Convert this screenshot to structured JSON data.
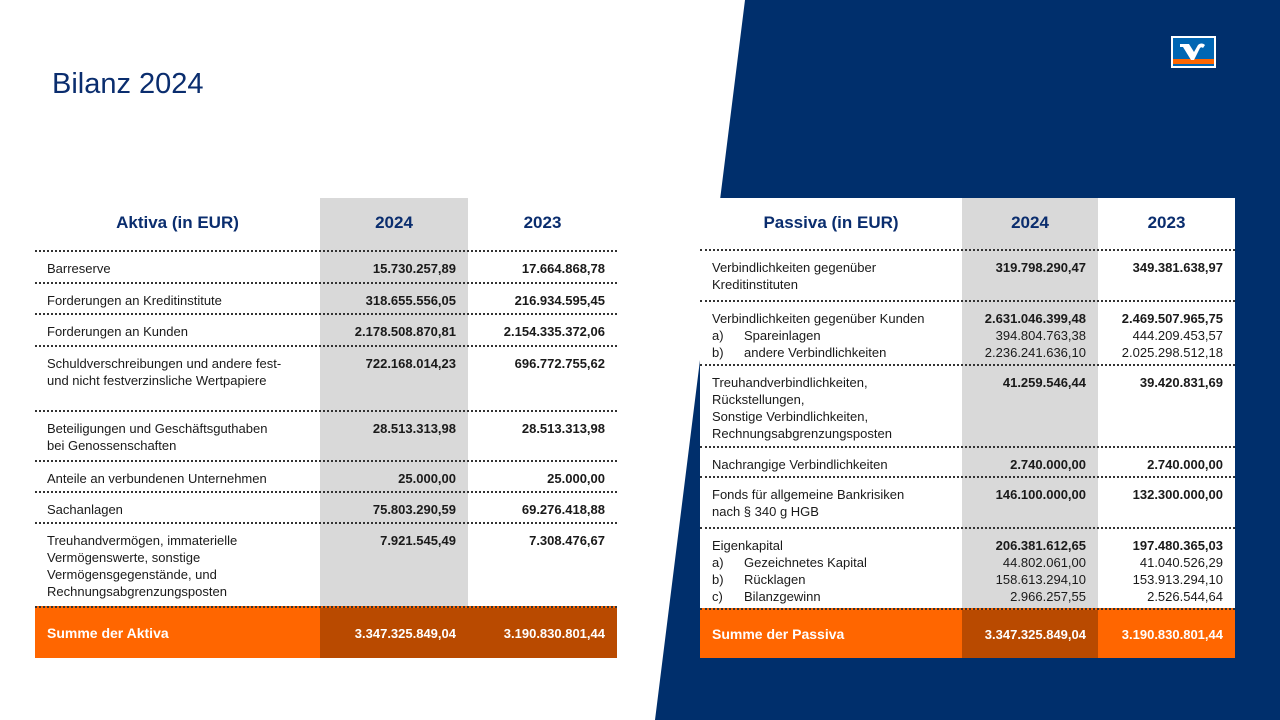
{
  "title": "Bilanz 2024",
  "colors": {
    "navy": "#002f6c",
    "orange": "#ff6600",
    "dark_orange": "#b94a00",
    "shade": "#d9d9d9"
  },
  "logo_icon": "volksbank-raiffeisenbank-logo",
  "aktiva": {
    "header": "Aktiva (in EUR)",
    "y1": "2024",
    "y2": "2023",
    "rows": [
      {
        "label": [
          "Barreserve"
        ],
        "v1": "15.730.257,89",
        "v2": "17.664.868,78"
      },
      {
        "label": [
          "Forderungen an Kreditinstitute"
        ],
        "v1": "318.655.556,05",
        "v2": "216.934.595,45"
      },
      {
        "label": [
          "Forderungen an Kunden"
        ],
        "v1": "2.178.508.870,81",
        "v2": "2.154.335.372,06"
      },
      {
        "label": [
          "Schuldverschreibungen und andere fest-",
          "und nicht festverzinsliche Wertpapiere"
        ],
        "v1": "722.168.014,23",
        "v2": "696.772.755,62"
      },
      {
        "label": [
          "Beteiligungen und Geschäftsguthaben",
          "bei Genossenschaften"
        ],
        "v1": "28.513.313,98",
        "v2": "28.513.313,98"
      },
      {
        "label": [
          "Anteile an verbundenen Unternehmen"
        ],
        "v1": "25.000,00",
        "v2": "25.000,00"
      },
      {
        "label": [
          "Sachanlagen"
        ],
        "v1": "75.803.290,59",
        "v2": "69.276.418,88"
      },
      {
        "label": [
          "Treuhandvermögen, immaterielle",
          "Vermögenswerte, sonstige",
          "Vermögensgegenstände, und",
          "Rechnungsabgrenzungsposten"
        ],
        "v1": "7.921.545,49",
        "v2": "7.308.476,67"
      }
    ],
    "sum": {
      "label": "Summe der Aktiva",
      "v1": "3.347.325.849,04",
      "v2": "3.190.830.801,44"
    }
  },
  "passiva": {
    "header": "Passiva (in EUR)",
    "y1": "2024",
    "y2": "2023",
    "rows": [
      {
        "label": [
          "Verbindlichkeiten gegenüber",
          "Kreditinstituten"
        ],
        "v1": "319.798.290,47",
        "v2": "349.381.638,97"
      },
      {
        "label": [
          "Verbindlichkeiten gegenüber Kunden"
        ],
        "v1": "2.631.046.399,48",
        "v2": "2.469.507.965,75",
        "subs": [
          {
            "k": "a)",
            "label": "Spareinlagen",
            "v1": "394.804.763,38",
            "v2": "444.209.453,57"
          },
          {
            "k": "b)",
            "label": "andere Verbindlichkeiten",
            "v1": "2.236.241.636,10",
            "v2": "2.025.298.512,18"
          }
        ]
      },
      {
        "label": [
          "Treuhandverbindlichkeiten,",
          "Rückstellungen,",
          "Sonstige Verbindlichkeiten,",
          "Rechnungsabgrenzungsposten"
        ],
        "v1": "41.259.546,44",
        "v2": "39.420.831,69"
      },
      {
        "label": [
          "Nachrangige Verbindlichkeiten"
        ],
        "v1": "2.740.000,00",
        "v2": "2.740.000,00"
      },
      {
        "label": [
          "Fonds für allgemeine Bankrisiken",
          "nach § 340 g HGB"
        ],
        "v1": "146.100.000,00",
        "v2": "132.300.000,00"
      },
      {
        "label": [
          "Eigenkapital"
        ],
        "v1": "206.381.612,65",
        "v2": "197.480.365,03",
        "subs": [
          {
            "k": "a)",
            "label": "Gezeichnetes Kapital",
            "v1": "44.802.061,00",
            "v2": "41.040.526,29"
          },
          {
            "k": "b)",
            "label": "Rücklagen",
            "v1": "158.613.294,10",
            "v2": "153.913.294,10"
          },
          {
            "k": "c)",
            "label": "Bilanzgewinn",
            "v1": "2.966.257,55",
            "v2": "2.526.544,64"
          }
        ]
      }
    ],
    "sum": {
      "label": "Summe der Passiva",
      "v1": "3.347.325.849,04",
      "v2": "3.190.830.801,44"
    }
  }
}
